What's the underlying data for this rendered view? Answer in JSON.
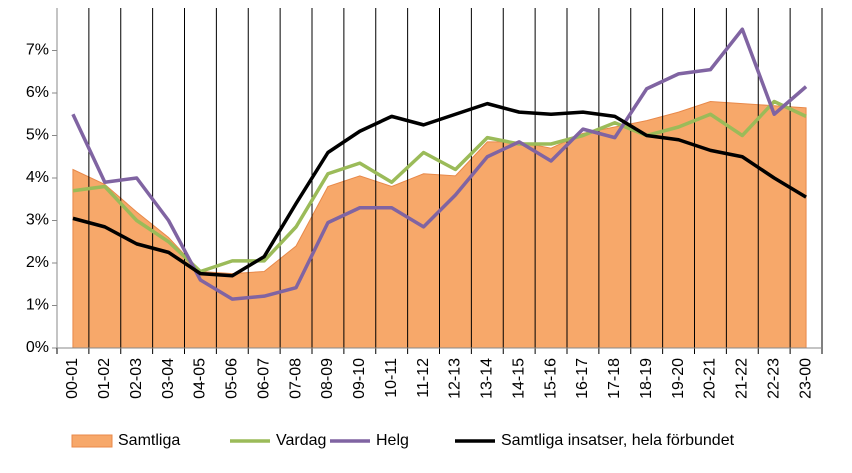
{
  "chart_data": {
    "type": "line",
    "categories": [
      "00-01",
      "01-02",
      "02-03",
      "03-04",
      "04-05",
      "05-06",
      "06-07",
      "07-08",
      "08-09",
      "09-10",
      "10-11",
      "11-12",
      "12-13",
      "13-14",
      "14-15",
      "15-16",
      "16-17",
      "17-18",
      "18-19",
      "19-20",
      "20-21",
      "21-22",
      "22-23",
      "23-00"
    ],
    "series": [
      {
        "name": "Samtliga",
        "type": "area",
        "color": "#f7a86a",
        "values": [
          4.2,
          3.85,
          3.2,
          2.6,
          1.8,
          1.75,
          1.8,
          2.4,
          3.8,
          4.05,
          3.8,
          4.1,
          4.05,
          4.85,
          4.85,
          4.7,
          5.05,
          5.2,
          5.35,
          5.55,
          5.8,
          5.75,
          5.7,
          5.65
        ]
      },
      {
        "name": "Vardag",
        "type": "line",
        "color": "#9bbb59",
        "values": [
          3.7,
          3.8,
          3.0,
          2.5,
          1.8,
          2.05,
          2.05,
          2.85,
          4.1,
          4.35,
          3.9,
          4.6,
          4.2,
          4.95,
          4.8,
          4.8,
          5.0,
          5.3,
          5.0,
          5.2,
          5.5,
          5.0,
          5.8,
          5.45
        ]
      },
      {
        "name": "Helg",
        "type": "line",
        "color": "#8064a2",
        "values": [
          5.5,
          3.9,
          4.0,
          3.0,
          1.6,
          1.15,
          1.22,
          1.42,
          2.95,
          3.3,
          3.3,
          2.85,
          3.6,
          4.5,
          4.85,
          4.4,
          5.15,
          4.95,
          6.1,
          6.45,
          6.55,
          7.5,
          5.5,
          6.15
        ]
      },
      {
        "name": "Samtliga insatser, hela förbundet",
        "type": "line",
        "color": "#000000",
        "values": [
          3.05,
          2.85,
          2.45,
          2.25,
          1.75,
          1.7,
          2.15,
          3.4,
          4.6,
          5.1,
          5.45,
          5.25,
          5.5,
          5.75,
          5.55,
          5.5,
          5.55,
          5.45,
          5.0,
          4.9,
          4.65,
          4.5,
          4.0,
          3.55
        ]
      }
    ],
    "ylim": [
      0,
      8
    ],
    "yticks": [
      {
        "value": 0,
        "label": "0%"
      },
      {
        "value": 1,
        "label": "1%"
      },
      {
        "value": 2,
        "label": "2%"
      },
      {
        "value": 3,
        "label": "3%"
      },
      {
        "value": 4,
        "label": "4%"
      },
      {
        "value": 5,
        "label": "5%"
      },
      {
        "value": 6,
        "label": "6%"
      },
      {
        "value": 7,
        "label": "7%"
      }
    ],
    "grid": true,
    "legend": "bottom"
  }
}
